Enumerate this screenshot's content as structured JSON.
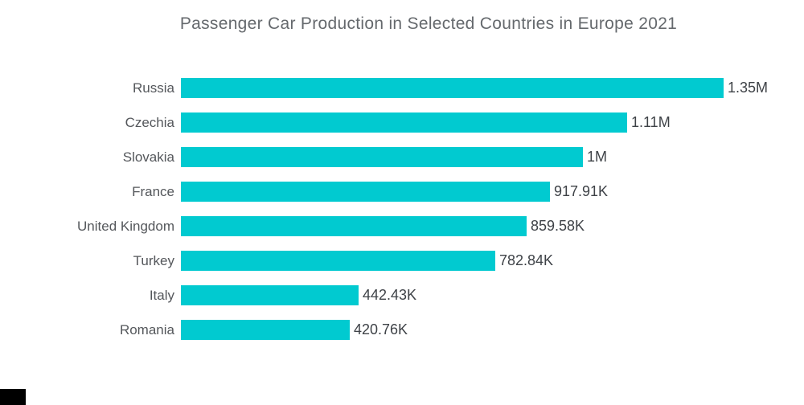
{
  "title": "Passenger Car Production in Selected Countries in Europe 2021",
  "colors": {
    "bar": "#01cad0",
    "title_text": "#65696d",
    "category_text": "#54575b",
    "value_text": "#3e4247",
    "background": "#ffffff",
    "watermark_block": "#000000"
  },
  "chart_data": {
    "type": "bar",
    "orientation": "horizontal",
    "title": "Passenger Car Production in Selected Countries in Europe 2021",
    "categories": [
      "Russia",
      "Czechia",
      "Slovakia",
      "France",
      "United Kingdom",
      "Turkey",
      "Italy",
      "Romania"
    ],
    "values": [
      1350000,
      1110000,
      1000000,
      917910,
      859580,
      782840,
      442430,
      420760
    ],
    "value_labels": [
      "1.35M",
      "1.11M",
      "1M",
      "917.91K",
      "859.58K",
      "782.84K",
      "442.43K",
      "420.76K"
    ],
    "xlabel": "",
    "ylabel": "",
    "xlim": [
      0,
      1350000
    ],
    "grid": false,
    "legend": false,
    "bar_color": "#01cad0",
    "sort_order": "descending"
  }
}
